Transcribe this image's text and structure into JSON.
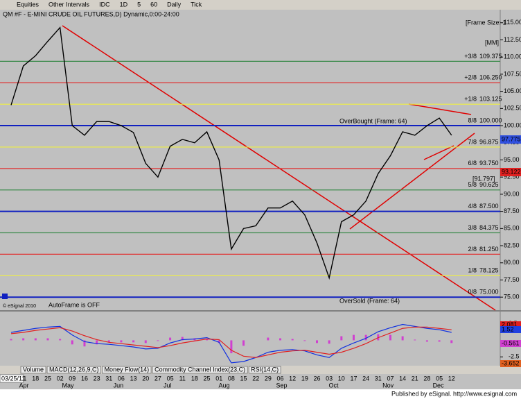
{
  "toolbar": {
    "items": [
      "Equities",
      "Other Intervals",
      "IDC",
      "1D",
      "5",
      "60",
      "Daily",
      "Tick"
    ]
  },
  "chart_data": {
    "type": "line",
    "title": "QM #F - E-MINI CRUDE OIL FUTURES,D) Dynamic,0:00-24:00",
    "frame_label": "[Frame Size: 1",
    "mm_label": "[MM]",
    "start_label": "03/25/11",
    "categories": [
      null,
      "11",
      "18",
      "25",
      "02",
      "09",
      "16",
      "23",
      "31",
      "06",
      "13",
      "20",
      "27",
      "05",
      "11",
      "18",
      "25",
      "01",
      "08",
      "15",
      "22",
      "29",
      "06",
      "12",
      "19",
      "26",
      "03",
      "10",
      "17",
      "24",
      "31",
      "07",
      "14",
      "21",
      "28",
      "05",
      "12"
    ],
    "months": [
      "Apr",
      "May",
      "Jun",
      "Jul",
      "Aug",
      "Sep",
      "Oct",
      "Nov",
      "Dec"
    ],
    "series": [
      {
        "name": "QM #F",
        "color": "#000000",
        "values": [
          103,
          108.7,
          110.2,
          112.3,
          114.3,
          100,
          98.6,
          100.6,
          100.6,
          100,
          99,
          94.5,
          92.5,
          97,
          98,
          97.5,
          99.1,
          95,
          82,
          85,
          85.4,
          88,
          88,
          89,
          87,
          82.9,
          77.8,
          86,
          87,
          89,
          93,
          95.6,
          99.1,
          98.6,
          100,
          101.1,
          98.6
        ]
      }
    ],
    "ylim": [
      73.3,
      116.9
    ],
    "yticks": [
      {
        "value": 115,
        "label": "115.00"
      },
      {
        "value": 112.5,
        "label": "112.50"
      },
      {
        "value": 110,
        "label": "110.00"
      },
      {
        "value": 107.5,
        "label": "107.50"
      },
      {
        "value": 105,
        "label": "105.00"
      },
      {
        "value": 102.5,
        "label": "102.50"
      },
      {
        "value": 100,
        "label": "100.00"
      },
      {
        "value": 97.5,
        "label": "97.50"
      },
      {
        "value": 95,
        "label": "95.00"
      },
      {
        "value": 92.5,
        "label": "92.50"
      },
      {
        "value": 90,
        "label": "90.00"
      },
      {
        "value": 87.5,
        "label": "87.50"
      },
      {
        "value": 85,
        "label": "85.00"
      },
      {
        "value": 82.5,
        "label": "82.50"
      },
      {
        "value": 80,
        "label": "80.00"
      },
      {
        "value": 77.5,
        "label": "77.50"
      },
      {
        "value": 75,
        "label": "75.00"
      }
    ],
    "levels": [
      {
        "name": "+3/8",
        "value": 109.375,
        "label": "109.375",
        "color": "#3a8a4a"
      },
      {
        "name": "+2/8",
        "value": 106.25,
        "label": "106.250",
        "color": "#e03030"
      },
      {
        "name": "+1/8",
        "value": 103.125,
        "label": "103.125",
        "color": "#f0f040"
      },
      {
        "name": "8/8",
        "value": 100,
        "label": "100.000",
        "color": "#1020c0"
      },
      {
        "name": "7/8",
        "value": 96.875,
        "label": "96.875",
        "color": "#f0f040"
      },
      {
        "name": "6/8",
        "value": 93.75,
        "label": "93.750",
        "color": "#e03030"
      },
      {
        "name": "5/8",
        "value": 90.625,
        "label": "90.625",
        "color": "#3a8a4a"
      },
      {
        "name": "4/8",
        "value": 87.5,
        "label": "87.500",
        "color": "#1020c0"
      },
      {
        "name": "3/8",
        "value": 84.375,
        "label": "84.375",
        "color": "#3a8a4a"
      },
      {
        "name": "2/8",
        "value": 81.25,
        "label": "81.250",
        "color": "#e03030"
      },
      {
        "name": "1/8",
        "value": 78.125,
        "label": "78.125",
        "color": "#f0f040"
      },
      {
        "name": "0/8",
        "value": 75,
        "label": "75.000",
        "color": "#1020c0"
      }
    ],
    "annotations": {
      "overbought": "OverBought (Frame: 64)",
      "oversold": "OverSold (Frame: 64)",
      "autoframe": "AutoFrame is OFF",
      "copyright": "© eSignal 2010",
      "bracket": "[91.797]"
    },
    "price_boxes": [
      {
        "label": "97.775",
        "color": "#3050e0"
      },
      {
        "label": "93.122",
        "color": "#e02020"
      }
    ],
    "macd": {
      "ylim": [
        -3.83,
        4.34
      ],
      "yticks": [
        2.5,
        -2.5
      ],
      "series": [
        {
          "name": "MACD",
          "color": "#1030e0",
          "values": [
            1.2,
            1.5,
            1.8,
            2,
            2.1,
            0.8,
            -0.2,
            -0.5,
            -0.6,
            -0.8,
            -1,
            -1.3,
            -1.2,
            -0.4,
            0.1,
            0.2,
            0.4,
            -0.3,
            -3.4,
            -3.2,
            -2.6,
            -1.8,
            -1.5,
            -1.4,
            -1.6,
            -2.2,
            -2.6,
            -1.2,
            -0.4,
            0.3,
            1.3,
            1.9,
            2.4,
            2.1,
            1.8,
            1.6,
            1.2
          ]
        },
        {
          "name": "Signal",
          "color": "#e02020",
          "values": [
            1,
            1.2,
            1.5,
            1.7,
            1.9,
            1.4,
            0.7,
            0.1,
            -0.3,
            -0.5,
            -0.7,
            -0.9,
            -1.1,
            -0.8,
            -0.4,
            -0.1,
            0.2,
            0.1,
            -1.5,
            -2.4,
            -2.6,
            -2.2,
            -1.8,
            -1.6,
            -1.5,
            -1.8,
            -2.1,
            -1.8,
            -1.2,
            -0.5,
            0.4,
            1.1,
            1.8,
            2,
            2,
            1.8,
            1.6
          ]
        }
      ],
      "value_boxes": [
        {
          "label": "2.081",
          "color": "#e02020"
        },
        {
          "label": "1.52",
          "color": "#2040e0"
        },
        {
          "label": "-0.561",
          "color": "#d040d0"
        },
        {
          "label": "-3.652",
          "color": "#e06020"
        }
      ]
    },
    "tabs": [
      "Volume",
      "MACD(12,26,9,C)",
      "Money Flow(14)",
      "Commodity Channel Index(23,C)",
      "RSI(14,C)"
    ]
  },
  "footer": "Published by eSignal. http://www.esignal.com"
}
